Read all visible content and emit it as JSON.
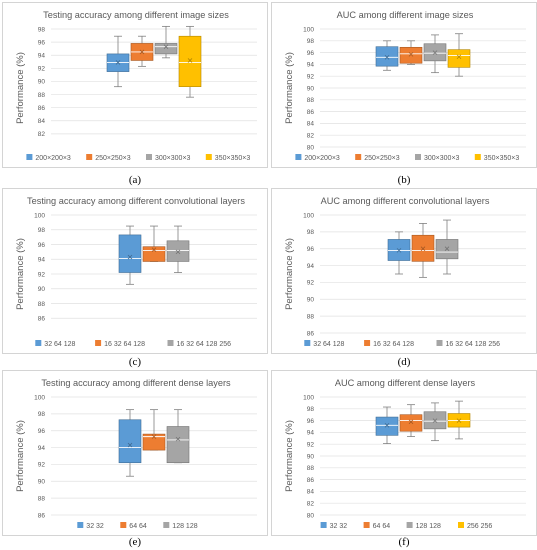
{
  "colors": {
    "blue": "#5b9bd5",
    "orange": "#ed7d31",
    "gray": "#a5a5a5",
    "gold": "#ffc000",
    "grid": "#e0e0e0",
    "text": "#595959"
  },
  "chart_data": [
    {
      "type": "boxplot",
      "caption": "(a)",
      "title": "Testing accuracy among different image sizes",
      "ylabel": "Performance (%)",
      "ylim": [
        80,
        98
      ],
      "yticks": [
        82,
        84,
        86,
        88,
        90,
        92,
        94,
        96,
        98
      ],
      "series": [
        {
          "name": "200×200×3",
          "color": "blue",
          "min": 89.2,
          "q1": 91.5,
          "median": 92.9,
          "q3": 94.2,
          "max": 96.9,
          "mean": 92.9
        },
        {
          "name": "250×250×3",
          "color": "orange",
          "min": 92.3,
          "q1": 93.2,
          "median": 94.5,
          "q3": 95.8,
          "max": 96.9,
          "mean": 94.5
        },
        {
          "name": "300×300×3",
          "color": "gray",
          "min": 93.6,
          "q1": 94.2,
          "median": 95.3,
          "q3": 95.8,
          "max": 98.4,
          "mean": 95.3
        },
        {
          "name": "350×350×3",
          "color": "gold",
          "min": 87.6,
          "q1": 89.2,
          "median": 92.9,
          "q3": 96.9,
          "max": 98.4,
          "mean": 93.2
        }
      ]
    },
    {
      "type": "boxplot",
      "caption": "(b)",
      "title": "AUC among different image sizes",
      "ylabel": "Performance (%)",
      "ylim": [
        80,
        100
      ],
      "yticks": [
        80,
        82,
        84,
        86,
        88,
        90,
        92,
        94,
        96,
        98,
        100
      ],
      "series": [
        {
          "name": "200×200×3",
          "color": "blue",
          "min": 93.0,
          "q1": 93.7,
          "median": 95.2,
          "q3": 97.0,
          "max": 98.0,
          "mean": 95.2
        },
        {
          "name": "250×250×3",
          "color": "orange",
          "min": 94.0,
          "q1": 94.2,
          "median": 95.8,
          "q3": 96.9,
          "max": 98.0,
          "mean": 95.7
        },
        {
          "name": "300×300×3",
          "color": "gray",
          "min": 92.6,
          "q1": 94.6,
          "median": 95.9,
          "q3": 97.5,
          "max": 99.0,
          "mean": 96.0
        },
        {
          "name": "350×350×3",
          "color": "gold",
          "min": 92.0,
          "q1": 93.5,
          "median": 95.5,
          "q3": 96.5,
          "max": 99.2,
          "mean": 95.3
        }
      ]
    },
    {
      "type": "boxplot",
      "caption": "(c)",
      "title": "Testing accuracy among different convolutional layers",
      "ylabel": "Performance (%)",
      "ylim": [
        84,
        100
      ],
      "yticks": [
        86,
        88,
        90,
        92,
        94,
        96,
        98,
        100
      ],
      "series": [
        {
          "name": "32 64 128",
          "color": "blue",
          "min": 90.6,
          "q1": 92.2,
          "median": 94.1,
          "q3": 97.3,
          "max": 98.5,
          "mean": 94.3
        },
        {
          "name": "16 32 64 128",
          "color": "orange",
          "min": 93.7,
          "q1": 93.7,
          "median": 95.2,
          "q3": 95.7,
          "max": 98.5,
          "mean": 95.3
        },
        {
          "name": "16 32 64 128 256",
          "color": "gray",
          "min": 92.2,
          "q1": 93.7,
          "median": 95.2,
          "q3": 96.5,
          "max": 98.5,
          "mean": 95.0
        }
      ]
    },
    {
      "type": "boxplot",
      "caption": "(d)",
      "title": "AUC among different convolutional layers",
      "ylabel": "Performance (%)",
      "ylim": [
        86,
        100
      ],
      "yticks": [
        86,
        88,
        90,
        92,
        94,
        96,
        98,
        100
      ],
      "series": [
        {
          "name": "32 64 128",
          "color": "blue",
          "min": 93.0,
          "q1": 94.6,
          "median": 95.8,
          "q3": 97.1,
          "max": 98.0,
          "mean": 95.8
        },
        {
          "name": "16 32 64 128",
          "color": "orange",
          "min": 92.6,
          "q1": 94.5,
          "median": 95.8,
          "q3": 97.6,
          "max": 99.0,
          "mean": 96.0
        },
        {
          "name": "16 32 64 128 256",
          "color": "gray",
          "min": 93.0,
          "q1": 94.8,
          "median": 95.6,
          "q3": 97.1,
          "max": 99.4,
          "mean": 96.0
        }
      ]
    },
    {
      "type": "boxplot",
      "caption": "(e)",
      "title": "Testing accuracy among different dense layers",
      "ylabel": "Performance (%)",
      "ylim": [
        86,
        100
      ],
      "yticks": [
        86,
        88,
        90,
        92,
        94,
        96,
        98,
        100
      ],
      "series": [
        {
          "name": "32 32",
          "color": "blue",
          "min": 90.6,
          "q1": 92.2,
          "median": 94.0,
          "q3": 97.3,
          "max": 98.5,
          "mean": 94.3
        },
        {
          "name": "64 64",
          "color": "orange",
          "min": 93.7,
          "q1": 93.7,
          "median": 95.3,
          "q3": 95.6,
          "max": 98.5,
          "mean": 95.3
        },
        {
          "name": "128 128",
          "color": "gray",
          "min": 92.2,
          "q1": 92.2,
          "median": 94.9,
          "q3": 96.5,
          "max": 98.5,
          "mean": 95.0
        }
      ]
    },
    {
      "type": "boxplot",
      "caption": "(f)",
      "title": "AUC among different dense layers",
      "ylabel": "Performance (%)",
      "ylim": [
        80,
        100
      ],
      "yticks": [
        80,
        82,
        84,
        86,
        88,
        90,
        92,
        94,
        96,
        98,
        100
      ],
      "series": [
        {
          "name": "32 32",
          "color": "blue",
          "min": 92.1,
          "q1": 93.5,
          "median": 95.2,
          "q3": 96.6,
          "max": 98.3,
          "mean": 95.2
        },
        {
          "name": "64 64",
          "color": "orange",
          "min": 93.3,
          "q1": 94.2,
          "median": 96.0,
          "q3": 97.0,
          "max": 98.7,
          "mean": 95.8
        },
        {
          "name": "128 128",
          "color": "gray",
          "min": 92.6,
          "q1": 94.6,
          "median": 95.9,
          "q3": 97.5,
          "max": 99.0,
          "mean": 96.0
        },
        {
          "name": "256 256",
          "color": "gold",
          "min": 92.9,
          "q1": 94.9,
          "median": 96.0,
          "q3": 97.2,
          "max": 99.3,
          "mean": 96.0
        }
      ]
    }
  ]
}
